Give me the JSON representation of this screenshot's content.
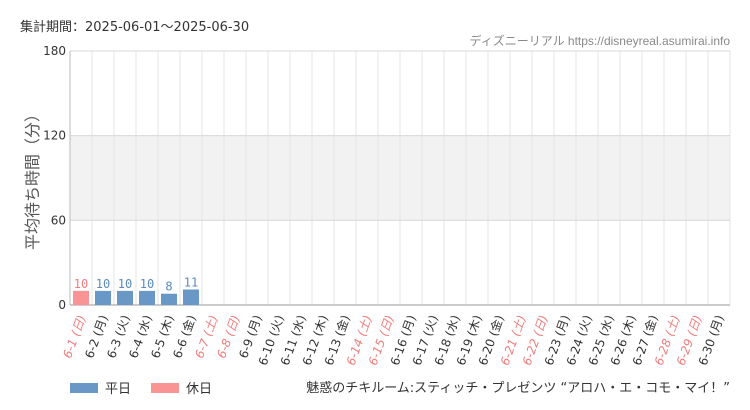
{
  "header": {
    "period": "集計期間：2025-06-01～2025-06-30",
    "source": "ディズニーリアル https://disneyreal.asumirai.info"
  },
  "footer": {
    "attraction": "魅惑のチキルーム:スティッチ・プレゼンツ “アロハ・エ・コモ・マイ！”"
  },
  "legend": [
    {
      "label": "平日",
      "color": "#6a98c6"
    },
    {
      "label": "休日",
      "color": "#fa9393"
    }
  ],
  "chart_data": {
    "type": "bar",
    "ylabel": "平均待ち時間（分）",
    "ylim": [
      0,
      180
    ],
    "yticks": [
      0,
      60,
      120,
      180
    ],
    "colors": {
      "weekday": "#6a98c6",
      "holiday": "#fa9393",
      "weekday_label": "#5b8ac0",
      "holiday_label": "#f27d7d",
      "band": "#f2f2f2"
    },
    "categories": [
      "6-1 (日)",
      "6-2 (月)",
      "6-3 (火)",
      "6-4 (水)",
      "6-5 (木)",
      "6-6 (金)",
      "6-7 (土)",
      "6-8 (日)",
      "6-9 (月)",
      "6-10 (火)",
      "6-11 (水)",
      "6-12 (木)",
      "6-13 (金)",
      "6-14 (土)",
      "6-15 (日)",
      "6-16 (月)",
      "6-17 (火)",
      "6-18 (水)",
      "6-19 (木)",
      "6-20 (金)",
      "6-21 (土)",
      "6-22 (日)",
      "6-23 (月)",
      "6-24 (火)",
      "6-25 (水)",
      "6-26 (木)",
      "6-27 (金)",
      "6-28 (土)",
      "6-29 (日)",
      "6-30 (月)"
    ],
    "holiday": [
      true,
      false,
      false,
      false,
      false,
      false,
      true,
      true,
      false,
      false,
      false,
      false,
      false,
      true,
      true,
      false,
      false,
      false,
      false,
      false,
      true,
      true,
      false,
      false,
      false,
      false,
      false,
      true,
      true,
      false
    ],
    "values": [
      10,
      10,
      10,
      10,
      8,
      11,
      null,
      null,
      null,
      null,
      null,
      null,
      null,
      null,
      null,
      null,
      null,
      null,
      null,
      null,
      null,
      null,
      null,
      null,
      null,
      null,
      null,
      null,
      null,
      null
    ]
  }
}
